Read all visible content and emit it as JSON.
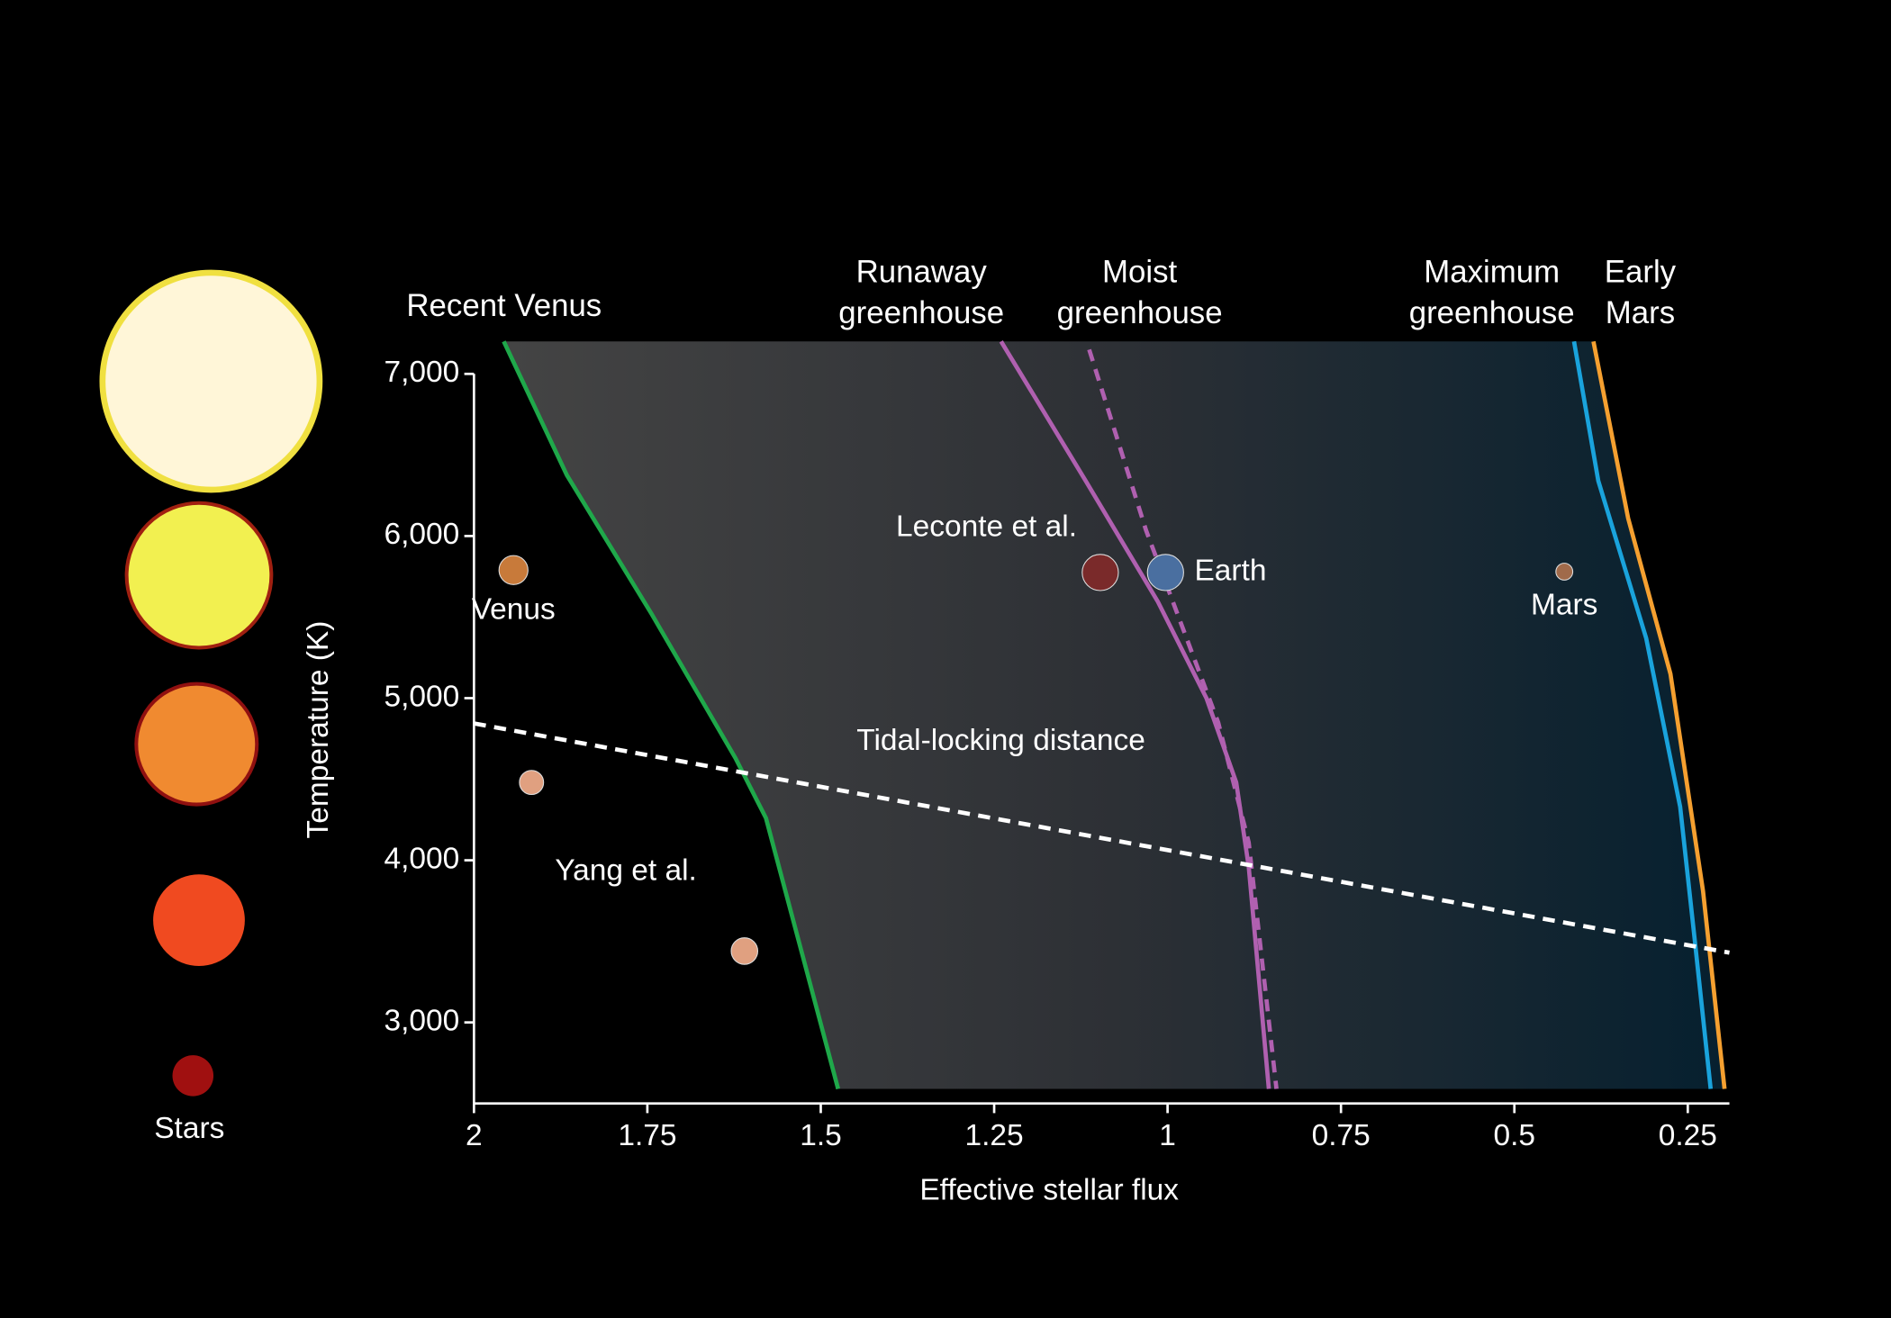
{
  "chart_data": {
    "type": "line",
    "x_label": "Effective stellar flux",
    "y_label": "Temperature (K)",
    "xlim": [
      2,
      0.19
    ],
    "ylim": [
      2500,
      7200
    ],
    "xticks": [
      2,
      1.75,
      1.5,
      1.25,
      1,
      0.75,
      0.5,
      0.25
    ],
    "yticks": [
      {
        "value": 3000,
        "label": "3,000"
      },
      {
        "value": 4000,
        "label": "4,000"
      },
      {
        "value": 5000,
        "label": "5,000"
      },
      {
        "value": 6000,
        "label": "6,000"
      },
      {
        "value": 7000,
        "label": "7,000"
      }
    ],
    "series": [
      {
        "name": "Recent Venus",
        "color": "#1fa84a",
        "x": [
          1.957,
          1.866,
          1.744,
          1.623,
          1.579,
          1.475
        ],
        "values": [
          7200,
          6375,
          5520,
          4630,
          4260,
          2590
        ]
      },
      {
        "name": "Runaway greenhouse",
        "color": "#b060b0",
        "x": [
          1.24,
          1.118,
          1.014,
          0.944,
          0.901,
          0.883,
          0.854
        ],
        "values": [
          7200,
          6340,
          5595,
          5000,
          4480,
          3960,
          2590
        ]
      },
      {
        "name": "Moist greenhouse",
        "color": "#b060b0",
        "dashed": true,
        "x": [
          1.113,
          1.031,
          0.927,
          0.883,
          0.843
        ],
        "values": [
          7150,
          6035,
          4850,
          4110,
          2590
        ]
      },
      {
        "name": "Maximum greenhouse",
        "color": "#1aa3dc",
        "x": [
          0.414,
          0.379,
          0.31,
          0.261,
          0.24,
          0.217
        ],
        "values": [
          7200,
          6340,
          5370,
          4330,
          3510,
          2590
        ]
      },
      {
        "name": "Early Mars",
        "color": "#f5a030",
        "x": [
          0.386,
          0.336,
          0.275,
          0.228,
          0.197
        ],
        "values": [
          7200,
          6110,
          5150,
          3810,
          2590
        ]
      },
      {
        "name": "Tidal-locking distance",
        "color": "#ffffff",
        "dashed": true,
        "x": [
          2,
          0.19
        ],
        "values": [
          4844,
          3430
        ]
      }
    ],
    "points": [
      {
        "name": "Venus",
        "x": 1.943,
        "y": 5790,
        "color": "#c87a3a"
      },
      {
        "name": "Earth",
        "x": 1.003,
        "y": 5775,
        "color": "#4a6fa0"
      },
      {
        "name": "Mars",
        "x": 0.428,
        "y": 5780,
        "color": "#a06a4a"
      },
      {
        "x": 1.097,
        "y": 5775,
        "color": "#7a2a2a"
      },
      {
        "x": 1.917,
        "y": 4480,
        "color": "#e0a080"
      },
      {
        "x": 1.61,
        "y": 3440,
        "color": "#e0a080"
      }
    ],
    "annotations": [
      "Leconte et al.",
      "Yang et al."
    ],
    "stars_label": "Stars"
  }
}
